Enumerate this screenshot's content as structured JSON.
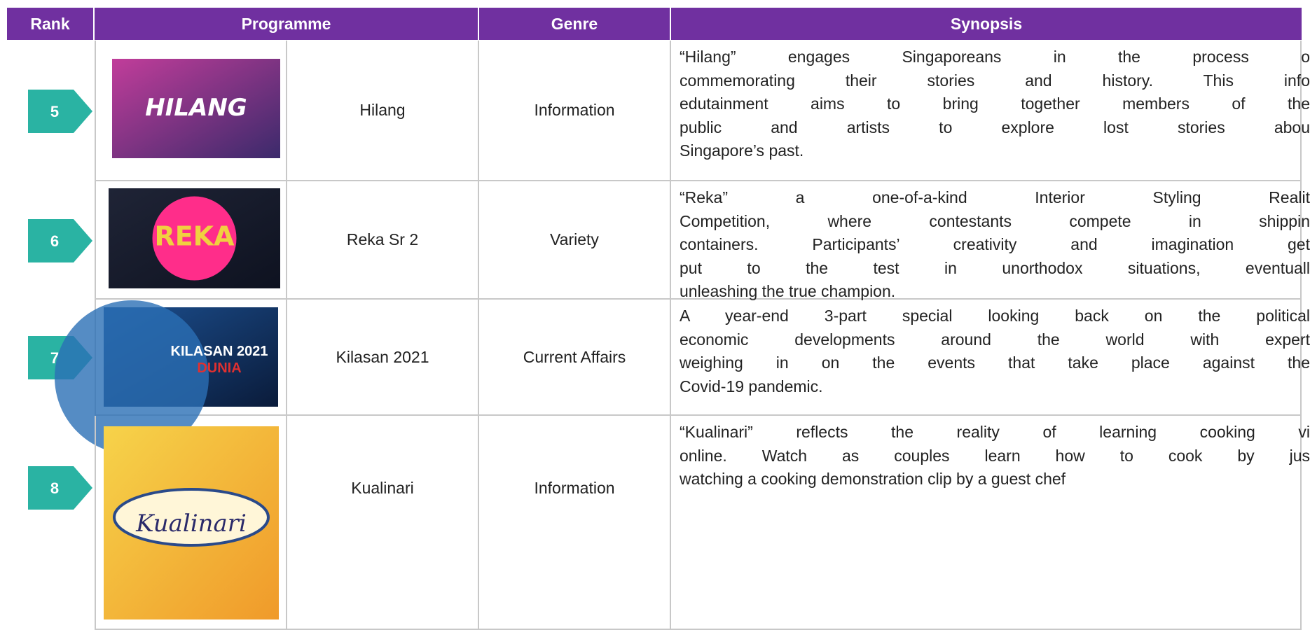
{
  "table": {
    "header": [
      "Rank",
      "Programme",
      "Genre",
      "Synopsis"
    ],
    "rows": [
      {
        "rank": "5",
        "thumbnail_text": [
          "HILANG"
        ],
        "programme": "Hilang",
        "genre": "Information",
        "synopsis": [
          "“Hilang” engages Singaporeans in the process o",
          "commemorating their stories and history. This info",
          "edutainment aims to bring together members of the",
          "public and artists to explore lost stories abou",
          "Singapore’s past."
        ]
      },
      {
        "rank": "6",
        "thumbnail_text": [
          "REKA"
        ],
        "programme": "Reka Sr 2",
        "genre": "Variety",
        "synopsis": [
          "“Reka” a one-of-a-kind Interior Styling Realit",
          "Competition, where contestants compete in shippin",
          "containers. Participants’ creativity and imagination get",
          "put to the test in unorthodox situations, eventuall",
          "unleashing the true champion."
        ]
      },
      {
        "rank": "7",
        "thumbnail_text": [
          "KILASAN 2021",
          "DUNIA"
        ],
        "programme": "Kilasan 2021",
        "genre": "Current Affairs",
        "synopsis": [
          "A year-end 3-part special looking back on the political",
          "economic developments around the world with expert",
          "weighing in on the events that take place against the",
          "Covid-19 pandemic."
        ]
      },
      {
        "rank": "8",
        "thumbnail_text": [
          "Kualinari"
        ],
        "programme": "Kualinari",
        "genre": "Information",
        "synopsis": [
          "“Kualinari” reflects the reality of learning cooking vi",
          "online. Watch as couples learn how to cook by jus",
          "watching a cooking demonstration clip by a guest chef"
        ]
      }
    ]
  }
}
